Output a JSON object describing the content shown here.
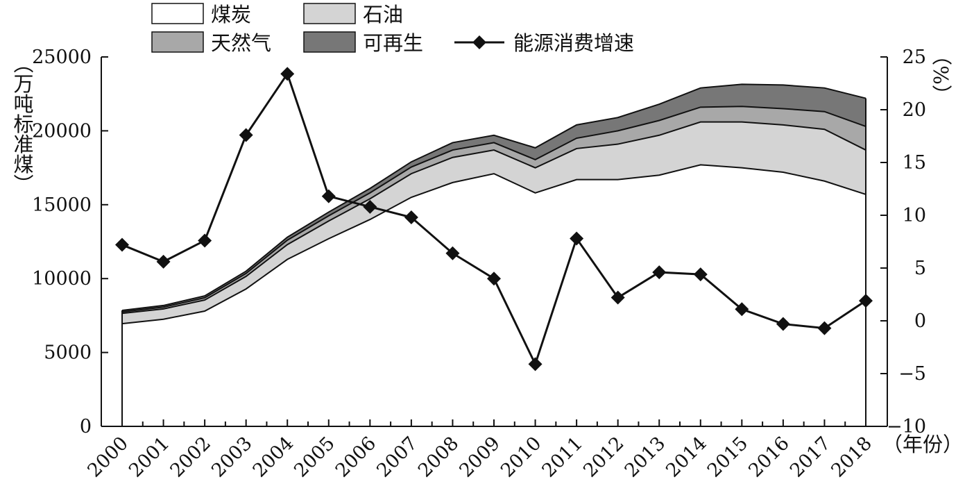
{
  "chart_data": {
    "type": "area",
    "x": [
      2000,
      2001,
      2002,
      2003,
      2004,
      2005,
      2006,
      2007,
      2008,
      2009,
      2010,
      2011,
      2012,
      2013,
      2014,
      2015,
      2016,
      2017,
      2018
    ],
    "x_tick_labels": [
      "2000",
      "2001",
      "2002",
      "2003",
      "2004",
      "2005",
      "2006",
      "2007",
      "2008",
      "2009",
      "2010",
      "2011",
      "2012",
      "2013",
      "2014",
      "2015",
      "2016",
      "2017",
      "2018"
    ],
    "xlabel": "（年份）",
    "ylabel_left": "（万吨标准煤）",
    "ylabel_right": "（%）",
    "ylim_left": [
      0,
      25000
    ],
    "ylim_right": [
      -10,
      25
    ],
    "left_ticks": [
      "0",
      "5000",
      "10000",
      "15000",
      "20000",
      "25000"
    ],
    "left_tick_values": [
      0,
      5000,
      10000,
      15000,
      20000,
      25000
    ],
    "right_ticks": [
      "−10",
      "−5",
      "0",
      "5",
      "10",
      "15",
      "20",
      "25"
    ],
    "right_tick_values": [
      -10,
      -5,
      0,
      5,
      10,
      15,
      20,
      25
    ],
    "grid": false,
    "legend_position": "top",
    "stacked_series": [
      {
        "name": "煤炭",
        "color": "#ffffff",
        "values": [
          6950,
          7250,
          7800,
          9300,
          11300,
          12700,
          14000,
          15500,
          16500,
          17100,
          15800,
          16700,
          16700,
          17000,
          17700,
          17500,
          17200,
          16600,
          15700
        ]
      },
      {
        "name": "石油",
        "color": "#d4d4d4",
        "values": [
          700,
          700,
          750,
          850,
          1000,
          1200,
          1400,
          1600,
          1700,
          1600,
          1700,
          2100,
          2400,
          2700,
          2900,
          3100,
          3200,
          3500,
          3000
        ]
      },
      {
        "name": "天然气",
        "color": "#a8a8a8",
        "values": [
          100,
          120,
          150,
          200,
          300,
          350,
          400,
          450,
          500,
          500,
          550,
          700,
          900,
          1000,
          1000,
          1050,
          1100,
          1200,
          1600
        ]
      },
      {
        "name": "可再生",
        "color": "#777777",
        "values": [
          100,
          110,
          130,
          150,
          200,
          250,
          300,
          350,
          500,
          500,
          800,
          900,
          900,
          1100,
          1300,
          1500,
          1600,
          1600,
          1900
        ]
      }
    ],
    "line_series": {
      "name": "能源消费增速",
      "color": "#111111",
      "marker": "diamond",
      "axis": "right",
      "values": [
        7.2,
        5.6,
        7.6,
        17.6,
        23.4,
        11.8,
        10.8,
        9.8,
        6.4,
        4.0,
        -4.1,
        7.8,
        2.2,
        4.6,
        4.4,
        1.1,
        -0.3,
        -0.7,
        1.9
      ]
    }
  }
}
